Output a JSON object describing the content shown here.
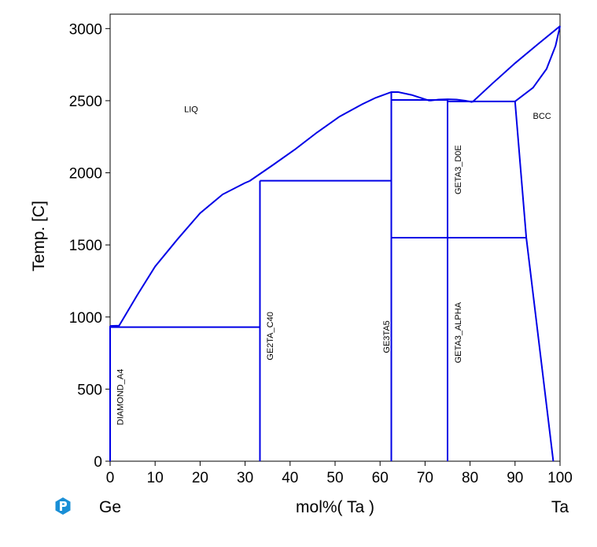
{
  "chart_data": {
    "type": "line",
    "title": "",
    "xlabel": "mol%(  Ta  )",
    "ylabel": "Temp.  [C]",
    "xlim": [
      0,
      100
    ],
    "ylim": [
      0,
      3100
    ],
    "x_ticks": [
      0,
      10,
      20,
      30,
      40,
      50,
      60,
      70,
      80,
      90,
      100
    ],
    "y_ticks": [
      0,
      500,
      1000,
      1500,
      2000,
      2500,
      3000
    ],
    "x_left_label": "Ge",
    "x_right_label": "Ta",
    "line_color": "#0000e6",
    "grid": false,
    "series": [
      {
        "kind": "curve",
        "points": [
          [
            0,
            938
          ],
          [
            2,
            940
          ],
          [
            6,
            1150
          ],
          [
            10,
            1350
          ],
          [
            15,
            1540
          ],
          [
            20,
            1720
          ],
          [
            25,
            1850
          ],
          [
            30,
            1930
          ],
          [
            31,
            1943
          ]
        ]
      },
      {
        "kind": "curve",
        "points": [
          [
            31,
            1943
          ],
          [
            36,
            2050
          ],
          [
            41,
            2160
          ],
          [
            46,
            2280
          ],
          [
            51,
            2390
          ],
          [
            56,
            2475
          ],
          [
            59,
            2520
          ],
          [
            62.5,
            2560
          ],
          [
            64,
            2560
          ],
          [
            67,
            2540
          ],
          [
            71,
            2500
          ]
        ]
      },
      {
        "kind": "curve",
        "points": [
          [
            71,
            2500
          ],
          [
            73,
            2508
          ],
          [
            75,
            2510
          ],
          [
            77,
            2508
          ],
          [
            79,
            2500
          ],
          [
            80.5,
            2490
          ]
        ]
      },
      {
        "kind": "curve",
        "points": [
          [
            80.5,
            2490
          ],
          [
            85,
            2620
          ],
          [
            90,
            2760
          ],
          [
            95,
            2890
          ],
          [
            100,
            3017
          ]
        ]
      },
      {
        "kind": "curve",
        "points": [
          [
            90,
            2495
          ],
          [
            94,
            2590
          ],
          [
            97,
            2720
          ],
          [
            99,
            2880
          ],
          [
            100,
            3017
          ]
        ]
      },
      {
        "kind": "line",
        "points": [
          [
            0,
            938
          ],
          [
            0,
            0
          ]
        ]
      },
      {
        "kind": "line",
        "points": [
          [
            0,
            930
          ],
          [
            33.3,
            930
          ]
        ]
      },
      {
        "kind": "line",
        "points": [
          [
            33.3,
            1945
          ],
          [
            33.3,
            0
          ]
        ]
      },
      {
        "kind": "line",
        "points": [
          [
            33.3,
            1945
          ],
          [
            62.5,
            1945
          ]
        ]
      },
      {
        "kind": "line",
        "points": [
          [
            62.5,
            2560
          ],
          [
            62.5,
            0
          ]
        ]
      },
      {
        "kind": "line",
        "points": [
          [
            62.5,
            2505
          ],
          [
            75,
            2505
          ]
        ]
      },
      {
        "kind": "line",
        "points": [
          [
            75,
            2510
          ],
          [
            75,
            0
          ]
        ]
      },
      {
        "kind": "line",
        "points": [
          [
            75,
            2495
          ],
          [
            90,
            2495
          ]
        ]
      },
      {
        "kind": "line",
        "points": [
          [
            62.5,
            1550
          ],
          [
            92.5,
            1550
          ]
        ]
      },
      {
        "kind": "line",
        "points": [
          [
            90,
            2495
          ],
          [
            92.5,
            1550
          ]
        ]
      },
      {
        "kind": "line",
        "points": [
          [
            92.5,
            1550
          ],
          [
            98.5,
            0
          ]
        ]
      }
    ],
    "annotations": [
      {
        "text": "LIQ",
        "x": 18,
        "y": 2420,
        "rotate": false
      },
      {
        "text": "BCC",
        "x": 96,
        "y": 2375,
        "rotate": false
      },
      {
        "text": "DIAMOND_A4",
        "x": 2.2,
        "y": 250,
        "rotate": true
      },
      {
        "text": "GE2TA_C40",
        "x": 35.5,
        "y": 700,
        "rotate": true
      },
      {
        "text": "GE3TA5",
        "x": 61.4,
        "y": 750,
        "rotate": true
      },
      {
        "text": "GETA3_ALPHA",
        "x": 77.3,
        "y": 680,
        "rotate": true
      },
      {
        "text": "GETA3_D0E",
        "x": 77.3,
        "y": 1850,
        "rotate": true
      }
    ]
  }
}
